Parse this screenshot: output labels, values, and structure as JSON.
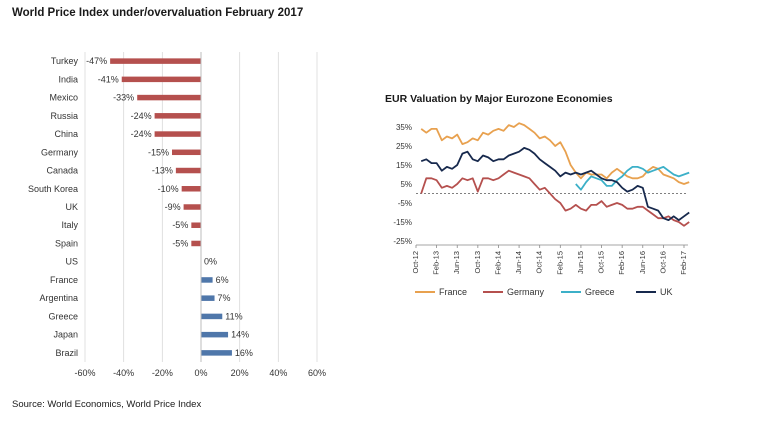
{
  "title": "World Price Index under/overvaluation February 2017",
  "source": "Source: World Economics, World Price Index",
  "chart_data": [
    {
      "type": "bar",
      "orientation": "horizontal",
      "title": "World Price Index under/overvaluation February 2017",
      "categories": [
        "Turkey",
        "India",
        "Mexico",
        "Russia",
        "China",
        "Germany",
        "Canada",
        "South Korea",
        "UK",
        "Italy",
        "Spain",
        "US",
        "France",
        "Argentina",
        "Greece",
        "Japan",
        "Brazil"
      ],
      "values": [
        -47,
        -41,
        -33,
        -24,
        -24,
        -15,
        -13,
        -10,
        -9,
        -5,
        -5,
        0,
        6,
        7,
        11,
        14,
        16
      ],
      "data_labels": [
        "-47%",
        "-41%",
        "-33%",
        "-24%",
        "-24%",
        "-15%",
        "-13%",
        "-10%",
        "-9%",
        "-5%",
        "-5%",
        "0%",
        "6%",
        "7%",
        "11%",
        "14%",
        "16%"
      ],
      "xlim": [
        -60,
        60
      ],
      "xticks": [
        "-60%",
        "-40%",
        "-20%",
        "0%",
        "20%",
        "40%",
        "60%"
      ],
      "colors": {
        "negative": "#b5504e",
        "positive": "#4f77aa"
      },
      "grid": true
    },
    {
      "type": "line",
      "title": "EUR Valuation by Major Eurozone Economies",
      "x_ticks": [
        "Oct-12",
        "Feb-13",
        "Jun-13",
        "Oct-13",
        "Feb-14",
        "Jun-14",
        "Oct-14",
        "Feb-15",
        "Jun-15",
        "Oct-15",
        "Feb-16",
        "Jun-16",
        "Oct-16",
        "Feb-17"
      ],
      "x_start": "Oct-12",
      "x_end": "Feb-17",
      "ylim": [
        -25,
        35
      ],
      "yticks": [
        "35%",
        "25%",
        "15%",
        "5%",
        "-5%",
        "-15%",
        "-25%"
      ],
      "zero_line": "dashed",
      "legend_position": "bottom",
      "series": [
        {
          "name": "France",
          "color": "#e8a14f",
          "values": [
            [
              "Nov-12",
              34
            ],
            [
              "Dec-12",
              32
            ],
            [
              "Jan-13",
              34
            ],
            [
              "Feb-13",
              34
            ],
            [
              "Mar-13",
              28
            ],
            [
              "Apr-13",
              30
            ],
            [
              "May-13",
              29
            ],
            [
              "Jun-13",
              31
            ],
            [
              "Jul-13",
              26
            ],
            [
              "Aug-13",
              27
            ],
            [
              "Sep-13",
              29
            ],
            [
              "Oct-13",
              28
            ],
            [
              "Nov-13",
              32
            ],
            [
              "Dec-13",
              31
            ],
            [
              "Jan-14",
              33
            ],
            [
              "Feb-14",
              34
            ],
            [
              "Mar-14",
              33
            ],
            [
              "Apr-14",
              36
            ],
            [
              "May-14",
              35
            ],
            [
              "Jun-14",
              37
            ],
            [
              "Jul-14",
              36
            ],
            [
              "Aug-14",
              34
            ],
            [
              "Sep-14",
              32
            ],
            [
              "Oct-14",
              29
            ],
            [
              "Nov-14",
              30
            ],
            [
              "Dec-14",
              28
            ],
            [
              "Jan-15",
              25
            ],
            [
              "Feb-15",
              27
            ],
            [
              "Mar-15",
              22
            ],
            [
              "Apr-15",
              15
            ],
            [
              "May-15",
              11
            ],
            [
              "Jun-15",
              8
            ],
            [
              "Jul-15",
              11
            ],
            [
              "Aug-15",
              10
            ],
            [
              "Sep-15",
              10
            ],
            [
              "Oct-15",
              10
            ],
            [
              "Nov-15",
              8
            ],
            [
              "Dec-15",
              11
            ],
            [
              "Jan-16",
              13
            ],
            [
              "Feb-16",
              11
            ],
            [
              "Mar-16",
              9
            ],
            [
              "Apr-16",
              8
            ],
            [
              "May-16",
              8
            ],
            [
              "Jun-16",
              9
            ],
            [
              "Jul-16",
              12
            ],
            [
              "Aug-16",
              14
            ],
            [
              "Sep-16",
              13
            ],
            [
              "Oct-16",
              10
            ],
            [
              "Nov-16",
              9
            ],
            [
              "Dec-16",
              8
            ],
            [
              "Jan-17",
              6
            ],
            [
              "Feb-17",
              5
            ],
            [
              "Mar-17",
              6
            ]
          ]
        },
        {
          "name": "Germany",
          "color": "#b5504e",
          "values": [
            [
              "Nov-12",
              0
            ],
            [
              "Dec-12",
              8
            ],
            [
              "Jan-13",
              8
            ],
            [
              "Feb-13",
              7
            ],
            [
              "Mar-13",
              3
            ],
            [
              "Apr-13",
              4
            ],
            [
              "May-13",
              3
            ],
            [
              "Jun-13",
              5
            ],
            [
              "Jul-13",
              8
            ],
            [
              "Aug-13",
              7
            ],
            [
              "Sep-13",
              8
            ],
            [
              "Oct-13",
              1
            ],
            [
              "Nov-13",
              8
            ],
            [
              "Dec-13",
              8
            ],
            [
              "Jan-14",
              7
            ],
            [
              "Feb-14",
              8
            ],
            [
              "Mar-14",
              10
            ],
            [
              "Apr-14",
              12
            ],
            [
              "May-14",
              11
            ],
            [
              "Jun-14",
              10
            ],
            [
              "Jul-14",
              9
            ],
            [
              "Aug-14",
              8
            ],
            [
              "Sep-14",
              5
            ],
            [
              "Oct-14",
              2
            ],
            [
              "Nov-14",
              3
            ],
            [
              "Dec-14",
              0
            ],
            [
              "Jan-15",
              -3
            ],
            [
              "Feb-15",
              -5
            ],
            [
              "Mar-15",
              -9
            ],
            [
              "Apr-15",
              -8
            ],
            [
              "May-15",
              -6
            ],
            [
              "Jun-15",
              -8
            ],
            [
              "Jul-15",
              -9
            ],
            [
              "Aug-15",
              -6
            ],
            [
              "Sep-15",
              -6
            ],
            [
              "Oct-15",
              -4
            ],
            [
              "Nov-15",
              -7
            ],
            [
              "Dec-15",
              -6
            ],
            [
              "Jan-16",
              -5
            ],
            [
              "Feb-16",
              -6
            ],
            [
              "Mar-16",
              -8
            ],
            [
              "Apr-16",
              -8
            ],
            [
              "May-16",
              -7
            ],
            [
              "Jun-16",
              -7
            ],
            [
              "Jul-16",
              -9
            ],
            [
              "Aug-16",
              -11
            ],
            [
              "Sep-16",
              -13
            ],
            [
              "Oct-16",
              -13
            ],
            [
              "Nov-16",
              -12
            ],
            [
              "Dec-16",
              -14
            ],
            [
              "Jan-17",
              -15
            ],
            [
              "Feb-17",
              -17
            ],
            [
              "Mar-17",
              -15
            ]
          ]
        },
        {
          "name": "Greece",
          "color": "#3cb0c8",
          "values": [
            [
              "May-15",
              5
            ],
            [
              "Jun-15",
              2
            ],
            [
              "Jul-15",
              6
            ],
            [
              "Aug-15",
              9
            ],
            [
              "Sep-15",
              8
            ],
            [
              "Oct-15",
              7
            ],
            [
              "Nov-15",
              4
            ],
            [
              "Dec-15",
              4
            ],
            [
              "Jan-16",
              7
            ],
            [
              "Feb-16",
              9
            ],
            [
              "Mar-16",
              12
            ],
            [
              "Apr-16",
              14
            ],
            [
              "May-16",
              14
            ],
            [
              "Jun-16",
              13
            ],
            [
              "Jul-16",
              11
            ],
            [
              "Aug-16",
              12
            ],
            [
              "Sep-16",
              13
            ],
            [
              "Oct-16",
              14
            ],
            [
              "Nov-16",
              12
            ],
            [
              "Dec-16",
              10
            ],
            [
              "Jan-17",
              9
            ],
            [
              "Feb-17",
              10
            ],
            [
              "Mar-17",
              11
            ]
          ]
        },
        {
          "name": "UK",
          "color": "#17294d",
          "values": [
            [
              "Nov-12",
              17
            ],
            [
              "Dec-12",
              18
            ],
            [
              "Jan-13",
              16
            ],
            [
              "Feb-13",
              16
            ],
            [
              "Mar-13",
              12
            ],
            [
              "Apr-13",
              14
            ],
            [
              "May-13",
              13
            ],
            [
              "Jun-13",
              15
            ],
            [
              "Jul-13",
              21
            ],
            [
              "Aug-13",
              22
            ],
            [
              "Sep-13",
              18
            ],
            [
              "Oct-13",
              17
            ],
            [
              "Nov-13",
              20
            ],
            [
              "Dec-13",
              19
            ],
            [
              "Jan-14",
              17
            ],
            [
              "Feb-14",
              18
            ],
            [
              "Mar-14",
              18
            ],
            [
              "Apr-14",
              20
            ],
            [
              "May-14",
              21
            ],
            [
              "Jun-14",
              22
            ],
            [
              "Jul-14",
              24
            ],
            [
              "Aug-14",
              23
            ],
            [
              "Sep-14",
              21
            ],
            [
              "Oct-14",
              18
            ],
            [
              "Nov-14",
              16
            ],
            [
              "Dec-14",
              14
            ],
            [
              "Jan-15",
              12
            ],
            [
              "Feb-15",
              9
            ],
            [
              "Mar-15",
              11
            ],
            [
              "Apr-15",
              10
            ],
            [
              "May-15",
              11
            ],
            [
              "Jun-15",
              10
            ],
            [
              "Jul-15",
              11
            ],
            [
              "Aug-15",
              12
            ],
            [
              "Sep-15",
              10
            ],
            [
              "Oct-15",
              8
            ],
            [
              "Nov-15",
              7
            ],
            [
              "Dec-15",
              7
            ],
            [
              "Jan-16",
              6
            ],
            [
              "Feb-16",
              3
            ],
            [
              "Mar-16",
              1
            ],
            [
              "Apr-16",
              2
            ],
            [
              "May-16",
              4
            ],
            [
              "Jun-16",
              3
            ],
            [
              "Jul-16",
              -7
            ],
            [
              "Aug-16",
              -8
            ],
            [
              "Sep-16",
              -9
            ],
            [
              "Oct-16",
              -13
            ],
            [
              "Nov-16",
              -14
            ],
            [
              "Dec-16",
              -12
            ],
            [
              "Jan-17",
              -14
            ],
            [
              "Feb-17",
              -12
            ],
            [
              "Mar-17",
              -10
            ]
          ]
        }
      ]
    }
  ]
}
